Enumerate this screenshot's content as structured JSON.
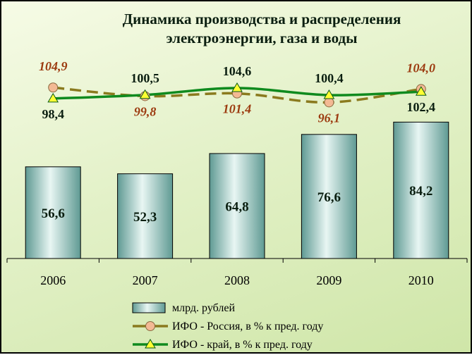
{
  "chart_data": {
    "type": "bar",
    "title": [
      "Динамика производства и распределения",
      "электроэнергии, газа и воды"
    ],
    "categories": [
      "2006",
      "2007",
      "2008",
      "2009",
      "2010"
    ],
    "bars": {
      "name": "млрд. рублей",
      "values": [
        56.6,
        52.3,
        64.8,
        76.6,
        84.2
      ],
      "labels": [
        "56,6",
        "52,3",
        "64,8",
        "76,6",
        "84,2"
      ]
    },
    "lines": [
      {
        "name": "ИФО - Россия, в % к пред. году",
        "values": [
          104.9,
          99.8,
          101.4,
          96.1,
          104.0
        ],
        "labels": [
          "104,9",
          "99,8",
          "101,4",
          "96,1",
          "104,0"
        ],
        "color": "#8a7a1e",
        "marker_color": "#f3b994"
      },
      {
        "name": "ИФО - край, в % к пред. году",
        "values": [
          98.4,
          100.5,
          104.6,
          100.4,
          102.4
        ],
        "labels": [
          "98,4",
          "100,5",
          "104,6",
          "100,4",
          "102,4"
        ],
        "color": "#0f8a1e",
        "marker_color": "#ffff33"
      }
    ],
    "colors": {
      "bar_dark": "#5f9a93",
      "bar_light": "#e8f6f3",
      "background": "#e3f1c8"
    }
  }
}
